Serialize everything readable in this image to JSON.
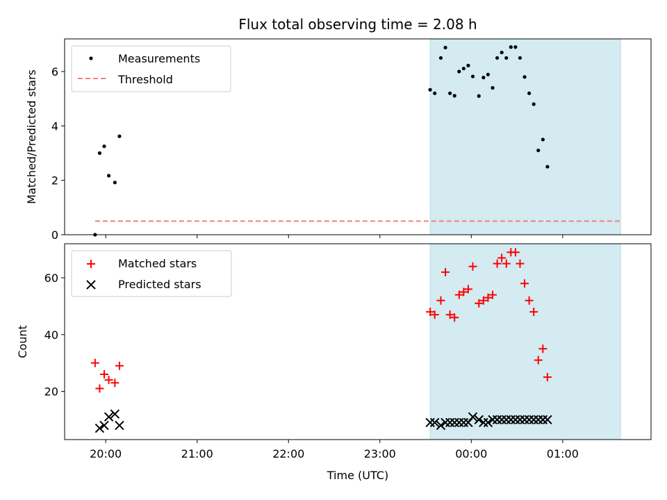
{
  "chart_data": {
    "title": "Flux total observing time = 2.08 h",
    "xlabel": "Time (UTC)",
    "xlim": [
      "19:33",
      "01:58"
    ],
    "xticks": [
      "20:00",
      "21:00",
      "22:00",
      "23:00",
      "00:00",
      "01:00"
    ],
    "shaded_span": {
      "start": "23:33",
      "end": "01:38",
      "color": "#d4ebf2"
    },
    "subplots": [
      {
        "type": "scatter",
        "ylabel": "Matched/Predicted stars",
        "ylim": [
          0,
          7.2
        ],
        "yticks": [
          0,
          2,
          4,
          6
        ],
        "legend_position": "upper-left",
        "series": [
          {
            "name": "Measurements",
            "marker": "dot",
            "color": "#000000",
            "points": [
              [
                "19:53",
                0.0
              ],
              [
                "19:56",
                3.0
              ],
              [
                "19:59",
                3.25
              ],
              [
                "20:02",
                2.17
              ],
              [
                "20:06",
                1.92
              ],
              [
                "20:09",
                3.62
              ],
              [
                "23:33",
                5.33
              ],
              [
                "23:36",
                5.2
              ],
              [
                "23:40",
                6.5
              ],
              [
                "23:43",
                6.88
              ],
              [
                "23:46",
                5.2
              ],
              [
                "23:49",
                5.11
              ],
              [
                "23:52",
                6.0
              ],
              [
                "23:55",
                6.11
              ],
              [
                "23:58",
                6.22
              ],
              [
                "00:01",
                5.82
              ],
              [
                "00:05",
                5.1
              ],
              [
                "00:08",
                5.78
              ],
              [
                "00:11",
                5.89
              ],
              [
                "00:14",
                5.4
              ],
              [
                "00:17",
                6.5
              ],
              [
                "00:20",
                6.7
              ],
              [
                "00:23",
                6.5
              ],
              [
                "00:26",
                6.9
              ],
              [
                "00:29",
                6.9
              ],
              [
                "00:32",
                6.5
              ],
              [
                "00:35",
                5.8
              ],
              [
                "00:38",
                5.2
              ],
              [
                "00:41",
                4.8
              ],
              [
                "00:44",
                3.1
              ],
              [
                "00:47",
                3.5
              ],
              [
                "00:50",
                2.5
              ]
            ]
          },
          {
            "name": "Threshold",
            "type": "line",
            "style": "dashed",
            "color": "#f08080",
            "points": [
              [
                "19:53",
                0.5
              ],
              [
                "01:38",
                0.5
              ]
            ]
          }
        ]
      },
      {
        "type": "scatter",
        "ylabel": "Count",
        "ylim": [
          3,
          72
        ],
        "yticks": [
          20,
          40,
          60
        ],
        "legend_position": "upper-left",
        "series": [
          {
            "name": "Matched stars",
            "marker": "plus",
            "color": "#ff0000",
            "points": [
              [
                "19:53",
                30
              ],
              [
                "19:56",
                21
              ],
              [
                "19:59",
                26
              ],
              [
                "20:02",
                24
              ],
              [
                "20:06",
                23
              ],
              [
                "20:09",
                29
              ],
              [
                "23:33",
                48
              ],
              [
                "23:36",
                47
              ],
              [
                "23:40",
                52
              ],
              [
                "23:43",
                62
              ],
              [
                "23:46",
                47
              ],
              [
                "23:49",
                46
              ],
              [
                "23:52",
                54
              ],
              [
                "23:55",
                55
              ],
              [
                "23:58",
                56
              ],
              [
                "00:01",
                64
              ],
              [
                "00:05",
                51
              ],
              [
                "00:08",
                52
              ],
              [
                "00:11",
                53
              ],
              [
                "00:14",
                54
              ],
              [
                "00:17",
                65
              ],
              [
                "00:20",
                67
              ],
              [
                "00:23",
                65
              ],
              [
                "00:26",
                69
              ],
              [
                "00:29",
                69
              ],
              [
                "00:32",
                65
              ],
              [
                "00:35",
                58
              ],
              [
                "00:38",
                52
              ],
              [
                "00:41",
                48
              ],
              [
                "00:44",
                31
              ],
              [
                "00:47",
                35
              ],
              [
                "00:50",
                25
              ]
            ]
          },
          {
            "name": "Predicted stars",
            "marker": "x",
            "color": "#000000",
            "points": [
              [
                "19:56",
                7
              ],
              [
                "19:59",
                8
              ],
              [
                "20:02",
                11
              ],
              [
                "20:06",
                12
              ],
              [
                "20:09",
                8
              ],
              [
                "23:33",
                9
              ],
              [
                "23:36",
                9
              ],
              [
                "23:40",
                8
              ],
              [
                "23:43",
                9
              ],
              [
                "23:46",
                9
              ],
              [
                "23:49",
                9
              ],
              [
                "23:52",
                9
              ],
              [
                "23:55",
                9
              ],
              [
                "23:58",
                9
              ],
              [
                "00:01",
                11
              ],
              [
                "00:05",
                10
              ],
              [
                "00:08",
                9
              ],
              [
                "00:11",
                9
              ],
              [
                "00:14",
                10
              ],
              [
                "00:17",
                10
              ],
              [
                "00:20",
                10
              ],
              [
                "00:23",
                10
              ],
              [
                "00:26",
                10
              ],
              [
                "00:29",
                10
              ],
              [
                "00:32",
                10
              ],
              [
                "00:35",
                10
              ],
              [
                "00:38",
                10
              ],
              [
                "00:41",
                10
              ],
              [
                "00:44",
                10
              ],
              [
                "00:47",
                10
              ],
              [
                "00:50",
                10
              ]
            ]
          }
        ]
      }
    ]
  }
}
